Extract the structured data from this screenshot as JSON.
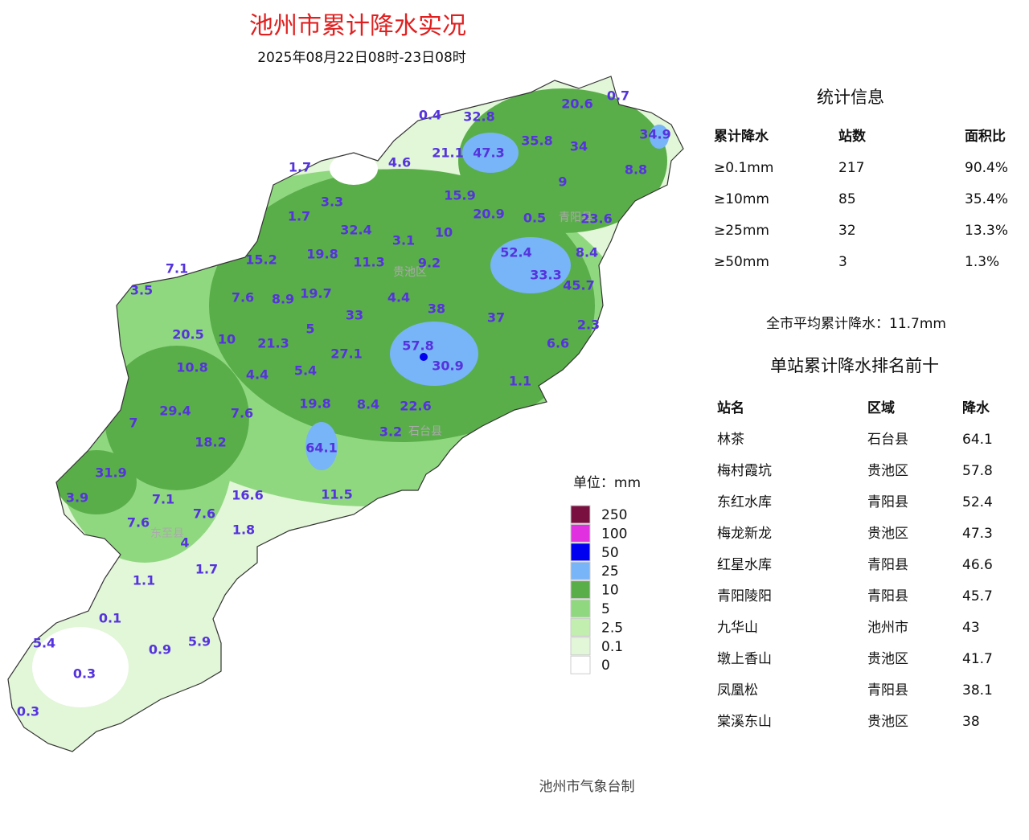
{
  "header": {
    "title": "池州市累计降水实况",
    "subtitle": "2025年08月22日08时-23日08时"
  },
  "map": {
    "district_labels": [
      "青阳县",
      "贵池区",
      "石台县",
      "东至县"
    ],
    "station_values": [
      0.4,
      32.8,
      20.6,
      0.7,
      34.9,
      47.3,
      21.1,
      35.8,
      34,
      8.8,
      1.7,
      4.6,
      9,
      15.9,
      3.3,
      20.9,
      0.5,
      23.6,
      1.7,
      32.4,
      3.1,
      10,
      52.4,
      8.4,
      15.2,
      19.8,
      11.3,
      9.2,
      33.3,
      45.7,
      7.1,
      3.5,
      7.6,
      8.9,
      19.7,
      4.4,
      38,
      33,
      37,
      2.3,
      20.5,
      10,
      21.3,
      5,
      57.8,
      6.6,
      27.1,
      10.8,
      4.4,
      5.4,
      30.9,
      1.1,
      19.8,
      8.4,
      22.6,
      29.4,
      7.6,
      7,
      18.2,
      3.2,
      64.1,
      31.9,
      11.5,
      3.9,
      7.1,
      16.6,
      7.6,
      7.6,
      1.8,
      4,
      1.7,
      1.1,
      0.1,
      5.4,
      0.9,
      5.9,
      0.3,
      0.3
    ]
  },
  "legend": {
    "unit": "单位：mm",
    "items": [
      {
        "value": 250,
        "color": "#7a1040"
      },
      {
        "value": 100,
        "color": "#e030e0"
      },
      {
        "value": 50,
        "color": "#0000f0"
      },
      {
        "value": 25,
        "color": "#78b4f8"
      },
      {
        "value": 10,
        "color": "#5aae4a"
      },
      {
        "value": 5,
        "color": "#90d880"
      },
      {
        "value": 2.5,
        "color": "#c2eeb0"
      },
      {
        "value": 0.1,
        "color": "#e2f6d8"
      },
      {
        "value": 0,
        "color": "#ffffff"
      }
    ]
  },
  "stats": {
    "title": "统计信息",
    "headers": [
      "累计降水",
      "站数",
      "面积比"
    ],
    "rows": [
      [
        "≥0.1mm",
        217,
        "90.4%"
      ],
      [
        "≥10mm",
        85,
        "35.4%"
      ],
      [
        "≥25mm",
        32,
        "13.3%"
      ],
      [
        "≥50mm",
        3,
        "1.3%"
      ]
    ],
    "average": "全市平均累计降水：11.7mm"
  },
  "ranking": {
    "title": "单站累计降水排名前十",
    "headers": [
      "站名",
      "区域",
      "降水"
    ],
    "rows": [
      [
        "林茶",
        "石台县",
        64.1
      ],
      [
        "梅村霞坑",
        "贵池区",
        57.8
      ],
      [
        "东红水库",
        "青阳县",
        52.4
      ],
      [
        "梅龙新龙",
        "贵池区",
        47.3
      ],
      [
        "红星水库",
        "青阳县",
        46.6
      ],
      [
        "青阳陵阳",
        "青阳县",
        45.7
      ],
      [
        "九华山",
        "池州市",
        43
      ],
      [
        "墩上香山",
        "贵池区",
        41.7
      ],
      [
        "凤凰松",
        "青阳县",
        38.1
      ],
      [
        "棠溪东山",
        "贵池区",
        38
      ]
    ]
  },
  "footer": "池州市气象台制"
}
